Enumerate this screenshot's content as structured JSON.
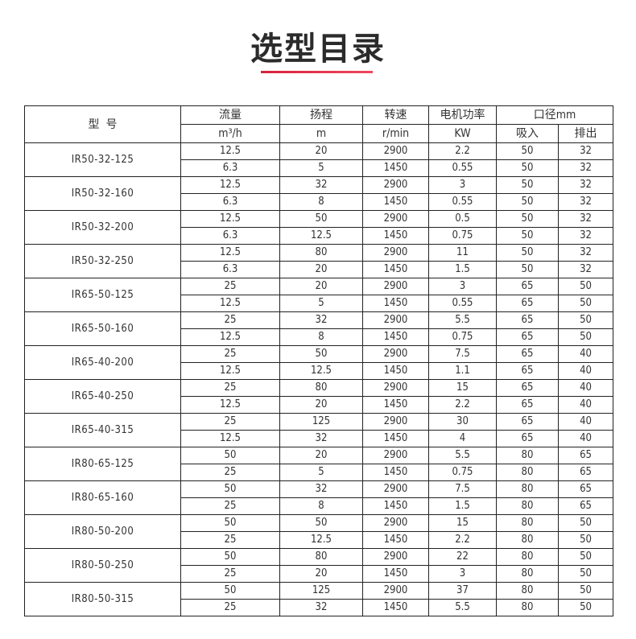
{
  "title": "选型目录",
  "accent_color": "#e0304a",
  "table": {
    "header_row1": {
      "model": "型  号",
      "flow": "流量",
      "head": "扬程",
      "speed": "转速",
      "power": "电机功率",
      "caliber": "口径mm"
    },
    "header_row2": {
      "flow_unit": "m³/h",
      "head_unit": "m",
      "speed_unit": "r/min",
      "power_unit": "KW",
      "inlet": "吸入",
      "outlet": "排出"
    },
    "models": [
      {
        "model": "IR50-32-125",
        "rows": [
          [
            "12.5",
            "20",
            "2900",
            "2.2",
            "50",
            "32"
          ],
          [
            "6.3",
            "5",
            "1450",
            "0.55",
            "50",
            "32"
          ]
        ]
      },
      {
        "model": "IR50-32-160",
        "rows": [
          [
            "12.5",
            "32",
            "2900",
            "3",
            "50",
            "32"
          ],
          [
            "6.3",
            "8",
            "1450",
            "0.55",
            "50",
            "32"
          ]
        ]
      },
      {
        "model": "IR50-32-200",
        "rows": [
          [
            "12.5",
            "50",
            "2900",
            "0.5",
            "50",
            "32"
          ],
          [
            "6.3",
            "12.5",
            "1450",
            "0.75",
            "50",
            "32"
          ]
        ]
      },
      {
        "model": "IR50-32-250",
        "rows": [
          [
            "12.5",
            "80",
            "2900",
            "11",
            "50",
            "32"
          ],
          [
            "6.3",
            "20",
            "1450",
            "1.5",
            "50",
            "32"
          ]
        ]
      },
      {
        "model": "IR65-50-125",
        "rows": [
          [
            "25",
            "20",
            "2900",
            "3",
            "65",
            "50"
          ],
          [
            "12.5",
            "5",
            "1450",
            "0.55",
            "65",
            "50"
          ]
        ]
      },
      {
        "model": "IR65-50-160",
        "rows": [
          [
            "25",
            "32",
            "2900",
            "5.5",
            "65",
            "50"
          ],
          [
            "12.5",
            "8",
            "1450",
            "0.75",
            "65",
            "50"
          ]
        ]
      },
      {
        "model": "IR65-40-200",
        "rows": [
          [
            "25",
            "50",
            "2900",
            "7.5",
            "65",
            "40"
          ],
          [
            "12.5",
            "12.5",
            "1450",
            "1.1",
            "65",
            "40"
          ]
        ]
      },
      {
        "model": "IR65-40-250",
        "rows": [
          [
            "25",
            "80",
            "2900",
            "15",
            "65",
            "40"
          ],
          [
            "12.5",
            "20",
            "1450",
            "2.2",
            "65",
            "40"
          ]
        ]
      },
      {
        "model": "IR65-40-315",
        "rows": [
          [
            "25",
            "125",
            "2900",
            "30",
            "65",
            "40"
          ],
          [
            "12.5",
            "32",
            "1450",
            "4",
            "65",
            "40"
          ]
        ]
      },
      {
        "model": "IR80-65-125",
        "rows": [
          [
            "50",
            "20",
            "2900",
            "5.5",
            "80",
            "65"
          ],
          [
            "25",
            "5",
            "1450",
            "0.75",
            "80",
            "65"
          ]
        ]
      },
      {
        "model": "IR80-65-160",
        "rows": [
          [
            "50",
            "32",
            "2900",
            "7.5",
            "80",
            "65"
          ],
          [
            "25",
            "8",
            "1450",
            "1.5",
            "80",
            "65"
          ]
        ]
      },
      {
        "model": "IR80-50-200",
        "rows": [
          [
            "50",
            "50",
            "2900",
            "15",
            "80",
            "50"
          ],
          [
            "25",
            "12.5",
            "1450",
            "2.2",
            "80",
            "50"
          ]
        ]
      },
      {
        "model": "IR80-50-250",
        "rows": [
          [
            "50",
            "80",
            "2900",
            "22",
            "80",
            "50"
          ],
          [
            "25",
            "20",
            "1450",
            "3",
            "80",
            "50"
          ]
        ]
      },
      {
        "model": "IR80-50-315",
        "rows": [
          [
            "50",
            "125",
            "2900",
            "37",
            "80",
            "50"
          ],
          [
            "25",
            "32",
            "1450",
            "5.5",
            "80",
            "50"
          ]
        ]
      }
    ]
  }
}
